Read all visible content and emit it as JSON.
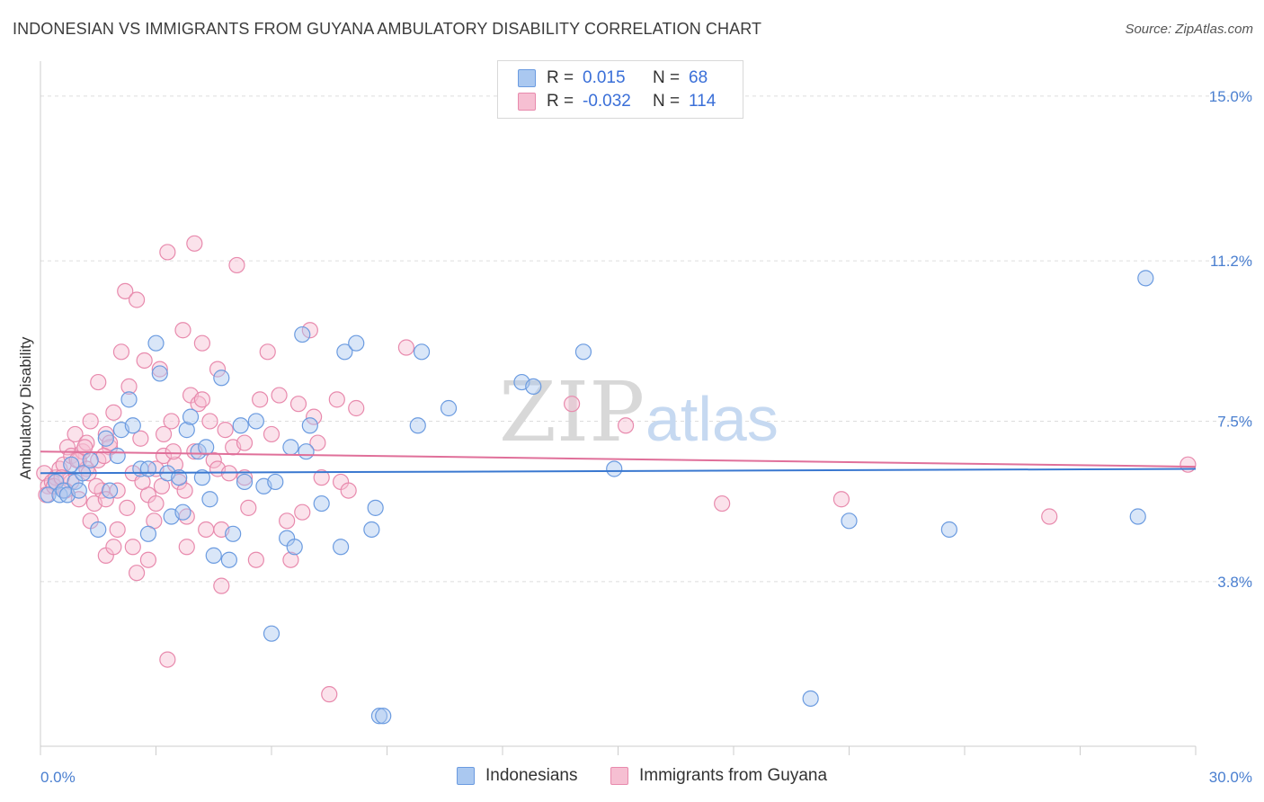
{
  "title": "INDONESIAN VS IMMIGRANTS FROM GUYANA AMBULATORY DISABILITY CORRELATION CHART",
  "source": "Source: ZipAtlas.com",
  "watermark": {
    "zip": "ZIP",
    "atlas": "atlas"
  },
  "legend": {
    "rows": [
      {
        "r_label": "R =",
        "r_value": "0.015",
        "n_label": "N =",
        "n_value": "68"
      },
      {
        "r_label": "R =",
        "r_value": "-0.032",
        "n_label": "N =",
        "n_value": "114"
      }
    ]
  },
  "bottom_legend": {
    "indonesians": "Indonesians",
    "guyana": "Immigrants from Guyana"
  },
  "colors": {
    "blue_fill": "#aac8f0",
    "blue_stroke": "#6b9be0",
    "blue_line": "#3a78d0",
    "pink_fill": "#f6bfd2",
    "pink_stroke": "#e88aad",
    "pink_line": "#e0709a",
    "axis_text": "#4a7fd0",
    "grid": "#dddddd"
  },
  "chart_data": {
    "type": "scatter",
    "title": "INDONESIAN VS IMMIGRANTS FROM GUYANA AMBULATORY DISABILITY CORRELATION CHART",
    "xlabel": "",
    "ylabel": "Ambulatory Disability",
    "xlim": [
      0,
      30
    ],
    "ylim": [
      0,
      15.6
    ],
    "x_tick_labels": [
      "0.0%",
      "30.0%"
    ],
    "y_ticks": [
      3.8,
      7.5,
      11.2,
      15.0
    ],
    "y_tick_labels": [
      "3.8%",
      "7.5%",
      "11.2%",
      "15.0%"
    ],
    "series": [
      {
        "name": "Indonesians",
        "r": 0.015,
        "n": 68,
        "trend": {
          "x": [
            0,
            30
          ],
          "y": [
            6.3,
            6.4
          ]
        },
        "points": [
          [
            0.2,
            5.8
          ],
          [
            0.4,
            6.1
          ],
          [
            0.5,
            5.8
          ],
          [
            0.6,
            5.9
          ],
          [
            0.7,
            5.8
          ],
          [
            0.8,
            6.5
          ],
          [
            0.9,
            6.1
          ],
          [
            1.0,
            5.9
          ],
          [
            1.1,
            6.3
          ],
          [
            1.3,
            6.6
          ],
          [
            1.5,
            5.0
          ],
          [
            1.7,
            7.1
          ],
          [
            1.8,
            5.9
          ],
          [
            2.0,
            6.7
          ],
          [
            2.1,
            7.3
          ],
          [
            2.3,
            8.0
          ],
          [
            2.4,
            7.4
          ],
          [
            2.6,
            6.4
          ],
          [
            2.8,
            6.4
          ],
          [
            2.8,
            4.9
          ],
          [
            3.0,
            9.3
          ],
          [
            3.1,
            8.6
          ],
          [
            3.3,
            6.3
          ],
          [
            3.4,
            5.3
          ],
          [
            3.6,
            6.2
          ],
          [
            3.7,
            5.4
          ],
          [
            3.8,
            7.3
          ],
          [
            3.9,
            7.6
          ],
          [
            4.1,
            6.8
          ],
          [
            4.2,
            6.2
          ],
          [
            4.3,
            6.9
          ],
          [
            4.4,
            5.7
          ],
          [
            4.5,
            4.4
          ],
          [
            4.7,
            8.5
          ],
          [
            4.9,
            4.3
          ],
          [
            5.0,
            4.9
          ],
          [
            5.2,
            7.4
          ],
          [
            5.3,
            6.1
          ],
          [
            5.6,
            7.5
          ],
          [
            5.8,
            6.0
          ],
          [
            6.0,
            2.6
          ],
          [
            6.1,
            6.1
          ],
          [
            6.4,
            4.8
          ],
          [
            6.5,
            6.9
          ],
          [
            6.6,
            4.6
          ],
          [
            6.8,
            9.5
          ],
          [
            6.9,
            6.8
          ],
          [
            7.0,
            7.4
          ],
          [
            7.3,
            5.6
          ],
          [
            7.8,
            4.6
          ],
          [
            7.9,
            9.1
          ],
          [
            8.2,
            9.3
          ],
          [
            8.6,
            5.0
          ],
          [
            8.7,
            5.5
          ],
          [
            8.8,
            0.7
          ],
          [
            8.9,
            0.7
          ],
          [
            9.8,
            7.4
          ],
          [
            9.9,
            9.1
          ],
          [
            10.6,
            7.8
          ],
          [
            12.5,
            8.4
          ],
          [
            12.8,
            8.3
          ],
          [
            14.1,
            9.1
          ],
          [
            14.9,
            6.4
          ],
          [
            20.0,
            1.1
          ],
          [
            21.0,
            5.2
          ],
          [
            23.6,
            5.0
          ],
          [
            28.5,
            5.3
          ],
          [
            28.7,
            10.8
          ]
        ]
      },
      {
        "name": "Immigrants from Guyana",
        "r": -0.032,
        "n": 114,
        "trend": {
          "x": [
            0,
            30
          ],
          "y": [
            6.8,
            6.45
          ]
        },
        "points": [
          [
            0.1,
            6.3
          ],
          [
            0.2,
            6.0
          ],
          [
            0.3,
            6.1
          ],
          [
            0.4,
            6.2
          ],
          [
            0.5,
            6.4
          ],
          [
            0.6,
            6.5
          ],
          [
            0.7,
            6.9
          ],
          [
            0.8,
            6.7
          ],
          [
            0.8,
            6.1
          ],
          [
            0.9,
            7.2
          ],
          [
            1.0,
            6.6
          ],
          [
            1.0,
            5.7
          ],
          [
            1.1,
            6.8
          ],
          [
            1.2,
            7.0
          ],
          [
            1.2,
            6.4
          ],
          [
            1.3,
            5.2
          ],
          [
            1.3,
            7.5
          ],
          [
            1.4,
            5.6
          ],
          [
            1.5,
            6.6
          ],
          [
            1.5,
            8.4
          ],
          [
            1.6,
            5.9
          ],
          [
            1.7,
            7.2
          ],
          [
            1.7,
            5.7
          ],
          [
            1.7,
            4.4
          ],
          [
            1.8,
            6.9
          ],
          [
            1.8,
            7.0
          ],
          [
            1.9,
            4.6
          ],
          [
            1.9,
            7.7
          ],
          [
            2.0,
            5.0
          ],
          [
            2.0,
            5.9
          ],
          [
            2.1,
            9.1
          ],
          [
            2.2,
            10.5
          ],
          [
            2.3,
            8.3
          ],
          [
            2.4,
            6.3
          ],
          [
            2.4,
            4.6
          ],
          [
            2.5,
            10.3
          ],
          [
            2.5,
            4.0
          ],
          [
            2.6,
            7.1
          ],
          [
            2.7,
            8.9
          ],
          [
            2.8,
            5.8
          ],
          [
            2.8,
            4.3
          ],
          [
            3.0,
            5.6
          ],
          [
            3.0,
            6.4
          ],
          [
            3.1,
            8.7
          ],
          [
            3.2,
            7.2
          ],
          [
            3.2,
            6.7
          ],
          [
            3.3,
            11.4
          ],
          [
            3.3,
            2.0
          ],
          [
            3.4,
            7.5
          ],
          [
            3.5,
            6.5
          ],
          [
            3.6,
            6.1
          ],
          [
            3.7,
            9.6
          ],
          [
            3.8,
            5.3
          ],
          [
            3.8,
            4.6
          ],
          [
            3.9,
            8.1
          ],
          [
            4.0,
            6.8
          ],
          [
            4.0,
            11.6
          ],
          [
            4.1,
            7.9
          ],
          [
            4.2,
            9.3
          ],
          [
            4.2,
            8.0
          ],
          [
            4.3,
            5.0
          ],
          [
            4.4,
            7.5
          ],
          [
            4.5,
            6.6
          ],
          [
            4.6,
            6.4
          ],
          [
            4.6,
            8.7
          ],
          [
            4.7,
            3.7
          ],
          [
            4.7,
            5.0
          ],
          [
            4.8,
            7.3
          ],
          [
            4.9,
            6.3
          ],
          [
            5.0,
            6.9
          ],
          [
            5.1,
            11.1
          ],
          [
            5.3,
            6.2
          ],
          [
            5.3,
            7.0
          ],
          [
            5.4,
            5.5
          ],
          [
            5.6,
            4.3
          ],
          [
            5.7,
            8.0
          ],
          [
            5.9,
            9.1
          ],
          [
            6.0,
            7.2
          ],
          [
            6.2,
            8.1
          ],
          [
            6.4,
            5.2
          ],
          [
            6.5,
            4.3
          ],
          [
            6.7,
            7.9
          ],
          [
            6.8,
            5.4
          ],
          [
            7.0,
            9.6
          ],
          [
            7.1,
            7.6
          ],
          [
            7.2,
            7.0
          ],
          [
            7.3,
            6.2
          ],
          [
            7.5,
            1.2
          ],
          [
            7.7,
            8.0
          ],
          [
            7.8,
            6.1
          ],
          [
            8.0,
            5.9
          ],
          [
            8.2,
            7.8
          ],
          [
            9.5,
            9.2
          ],
          [
            13.8,
            7.9
          ],
          [
            15.2,
            7.4
          ],
          [
            17.7,
            5.6
          ],
          [
            20.8,
            5.7
          ],
          [
            26.2,
            5.3
          ],
          [
            29.8,
            6.5
          ],
          [
            0.15,
            5.8
          ],
          [
            0.35,
            6.0
          ],
          [
            0.55,
            6.2
          ],
          [
            0.65,
            5.9
          ],
          [
            0.95,
            6.6
          ],
          [
            1.15,
            6.9
          ],
          [
            1.25,
            6.3
          ],
          [
            1.45,
            6.0
          ],
          [
            1.65,
            6.7
          ],
          [
            2.25,
            5.5
          ],
          [
            2.65,
            6.1
          ],
          [
            2.95,
            5.2
          ],
          [
            3.15,
            6.0
          ],
          [
            3.45,
            6.8
          ],
          [
            3.75,
            5.9
          ]
        ]
      }
    ]
  }
}
